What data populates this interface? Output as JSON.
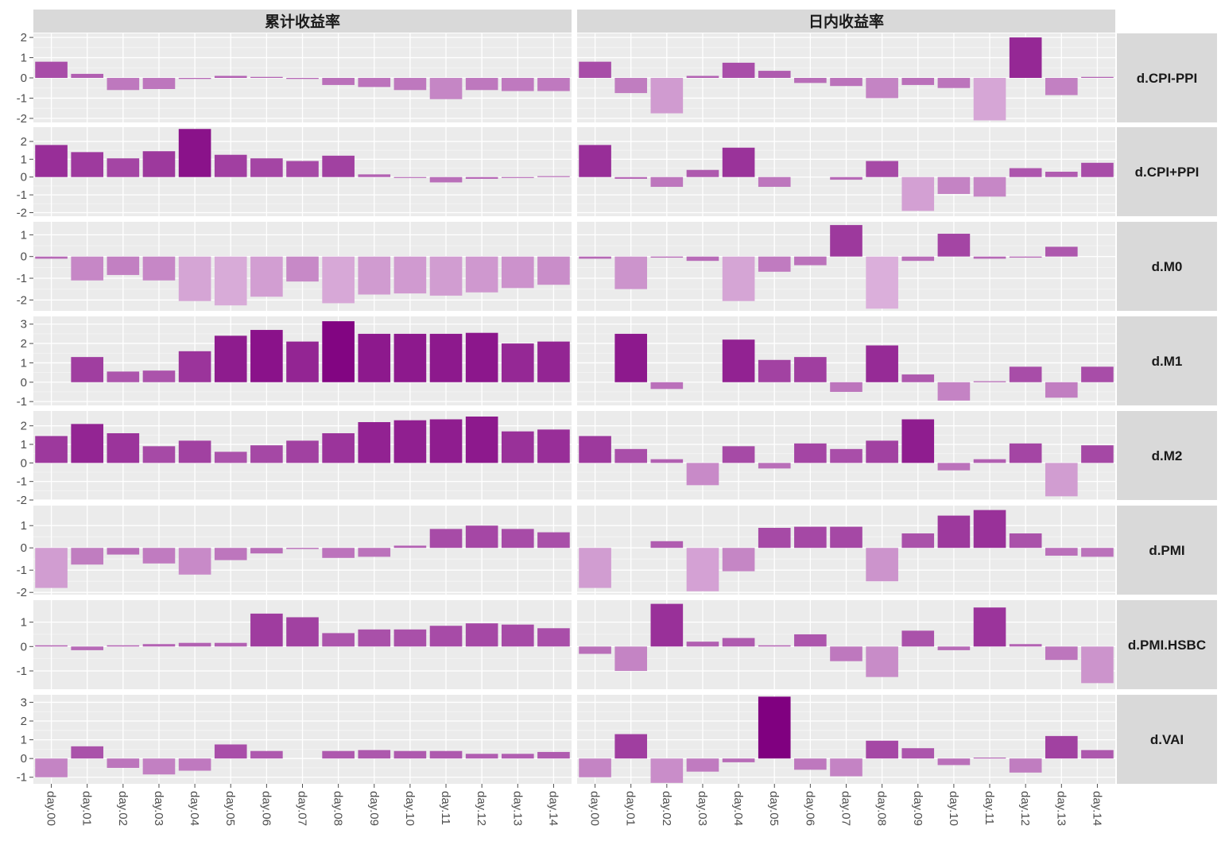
{
  "chart_data": {
    "type": "bar",
    "facet_columns": [
      "累计收益率",
      "日内收益率"
    ],
    "facet_rows": [
      "d.CPI-PPI",
      "d.CPI+PPI",
      "d.M0",
      "d.M1",
      "d.M2",
      "d.PMI",
      "d.PMI.HSBC",
      "d.VAI"
    ],
    "categories": [
      "day.00",
      "day.01",
      "day.02",
      "day.03",
      "day.04",
      "day.05",
      "day.06",
      "day.07",
      "day.08",
      "day.09",
      "day.10",
      "day.11",
      "day.12",
      "day.13",
      "day.14"
    ],
    "fill_color_scale": {
      "low": "#e9cbe9",
      "high": "#800080"
    },
    "grid": true,
    "panels": [
      {
        "row": "d.CPI-PPI",
        "ylim": [
          -2.2,
          2.2
        ],
        "yticks": [
          -2,
          -1,
          0,
          1,
          2
        ],
        "cumulative": [
          0.8,
          0.2,
          -0.6,
          -0.55,
          -0.05,
          0.1,
          0.05,
          -0.05,
          -0.35,
          -0.45,
          -0.6,
          -1.05,
          -0.6,
          -0.65,
          -0.65
        ],
        "daily": [
          0.8,
          -0.75,
          -1.75,
          0.1,
          0.75,
          0.35,
          -0.25,
          -0.4,
          -1.0,
          -0.35,
          -0.5,
          -2.1,
          2.0,
          -0.85,
          0.05
        ]
      },
      {
        "row": "d.CPI+PPI",
        "ylim": [
          -2.2,
          2.8
        ],
        "yticks": [
          -2,
          -1,
          0,
          1,
          2
        ],
        "cumulative": [
          1.8,
          1.4,
          1.05,
          1.45,
          2.7,
          1.25,
          1.05,
          0.9,
          1.2,
          0.15,
          -0.05,
          -0.3,
          -0.1,
          -0.05,
          0.05
        ],
        "daily": [
          1.8,
          -0.1,
          -0.55,
          0.4,
          1.65,
          -0.55,
          0.0,
          -0.15,
          0.9,
          -1.9,
          -0.95,
          -1.1,
          0.5,
          0.3,
          0.8
        ]
      },
      {
        "row": "d.M0",
        "ylim": [
          -2.5,
          1.6
        ],
        "yticks": [
          -2,
          -1,
          0,
          1
        ],
        "cumulative": [
          -0.1,
          -1.1,
          -0.85,
          -1.1,
          -2.05,
          -2.25,
          -1.85,
          -1.15,
          -2.15,
          -1.75,
          -1.7,
          -1.8,
          -1.65,
          -1.45,
          -1.3
        ],
        "daily": [
          -0.1,
          -1.5,
          -0.05,
          -0.2,
          -2.05,
          -0.7,
          -0.4,
          1.45,
          -2.4,
          -0.2,
          1.05,
          -0.1,
          -0.05,
          0.45,
          0.0
        ]
      },
      {
        "row": "d.M1",
        "ylim": [
          -1.2,
          3.4
        ],
        "yticks": [
          -1,
          0,
          1,
          2,
          3
        ],
        "cumulative": [
          0.0,
          1.3,
          0.55,
          0.6,
          1.6,
          2.4,
          2.7,
          2.1,
          3.15,
          2.5,
          2.5,
          2.5,
          2.55,
          2.0,
          2.1
        ],
        "daily": [
          0.0,
          2.5,
          -0.35,
          0.0,
          2.2,
          1.15,
          1.3,
          -0.5,
          1.9,
          0.4,
          -0.95,
          0.05,
          0.8,
          -0.8,
          0.8
        ]
      },
      {
        "row": "d.M2",
        "ylim": [
          -2.0,
          2.8
        ],
        "yticks": [
          -2,
          -1,
          0,
          1,
          2
        ],
        "cumulative": [
          1.45,
          2.1,
          1.6,
          0.9,
          1.2,
          0.6,
          0.95,
          1.2,
          1.6,
          2.2,
          2.3,
          2.35,
          2.5,
          1.7,
          1.8
        ],
        "daily": [
          1.45,
          0.75,
          0.2,
          -1.2,
          0.9,
          -0.3,
          1.05,
          0.75,
          1.2,
          2.35,
          -0.4,
          0.2,
          1.05,
          -1.8,
          0.95
        ]
      },
      {
        "row": "d.PMI",
        "ylim": [
          -2.1,
          1.9
        ],
        "yticks": [
          -2,
          -1,
          0,
          1
        ],
        "cumulative": [
          -1.8,
          -0.75,
          -0.3,
          -0.7,
          -1.2,
          -0.55,
          -0.25,
          -0.05,
          -0.45,
          -0.4,
          0.1,
          0.85,
          1.0,
          0.85,
          0.7
        ],
        "daily": [
          -1.8,
          0.0,
          0.3,
          -1.95,
          -1.05,
          0.9,
          0.95,
          0.95,
          -1.5,
          0.65,
          1.45,
          1.7,
          0.65,
          -0.35,
          -0.4
        ]
      },
      {
        "row": "d.PMI.HSBC",
        "ylim": [
          -1.75,
          1.9
        ],
        "yticks": [
          -1,
          0,
          1
        ],
        "cumulative": [
          0.05,
          -0.15,
          0.05,
          0.1,
          0.15,
          0.15,
          1.35,
          1.2,
          0.55,
          0.7,
          0.7,
          0.85,
          0.95,
          0.9,
          0.75
        ],
        "daily": [
          -0.3,
          -1.0,
          1.75,
          0.2,
          0.35,
          0.05,
          0.5,
          -0.6,
          -1.25,
          0.65,
          -0.15,
          1.6,
          0.1,
          -0.55,
          -1.5
        ]
      },
      {
        "row": "d.VAI",
        "ylim": [
          -1.35,
          3.4
        ],
        "yticks": [
          -1,
          0,
          1,
          2,
          3
        ],
        "cumulative": [
          -1.0,
          0.65,
          -0.5,
          -0.85,
          -0.65,
          0.75,
          0.4,
          0.0,
          0.4,
          0.45,
          0.4,
          0.4,
          0.25,
          0.25,
          0.35
        ],
        "daily": [
          -1.0,
          1.3,
          -1.3,
          -0.7,
          -0.2,
          3.3,
          -0.6,
          -0.95,
          0.95,
          0.55,
          -0.35,
          0.05,
          -0.75,
          1.2,
          0.45
        ]
      }
    ]
  }
}
